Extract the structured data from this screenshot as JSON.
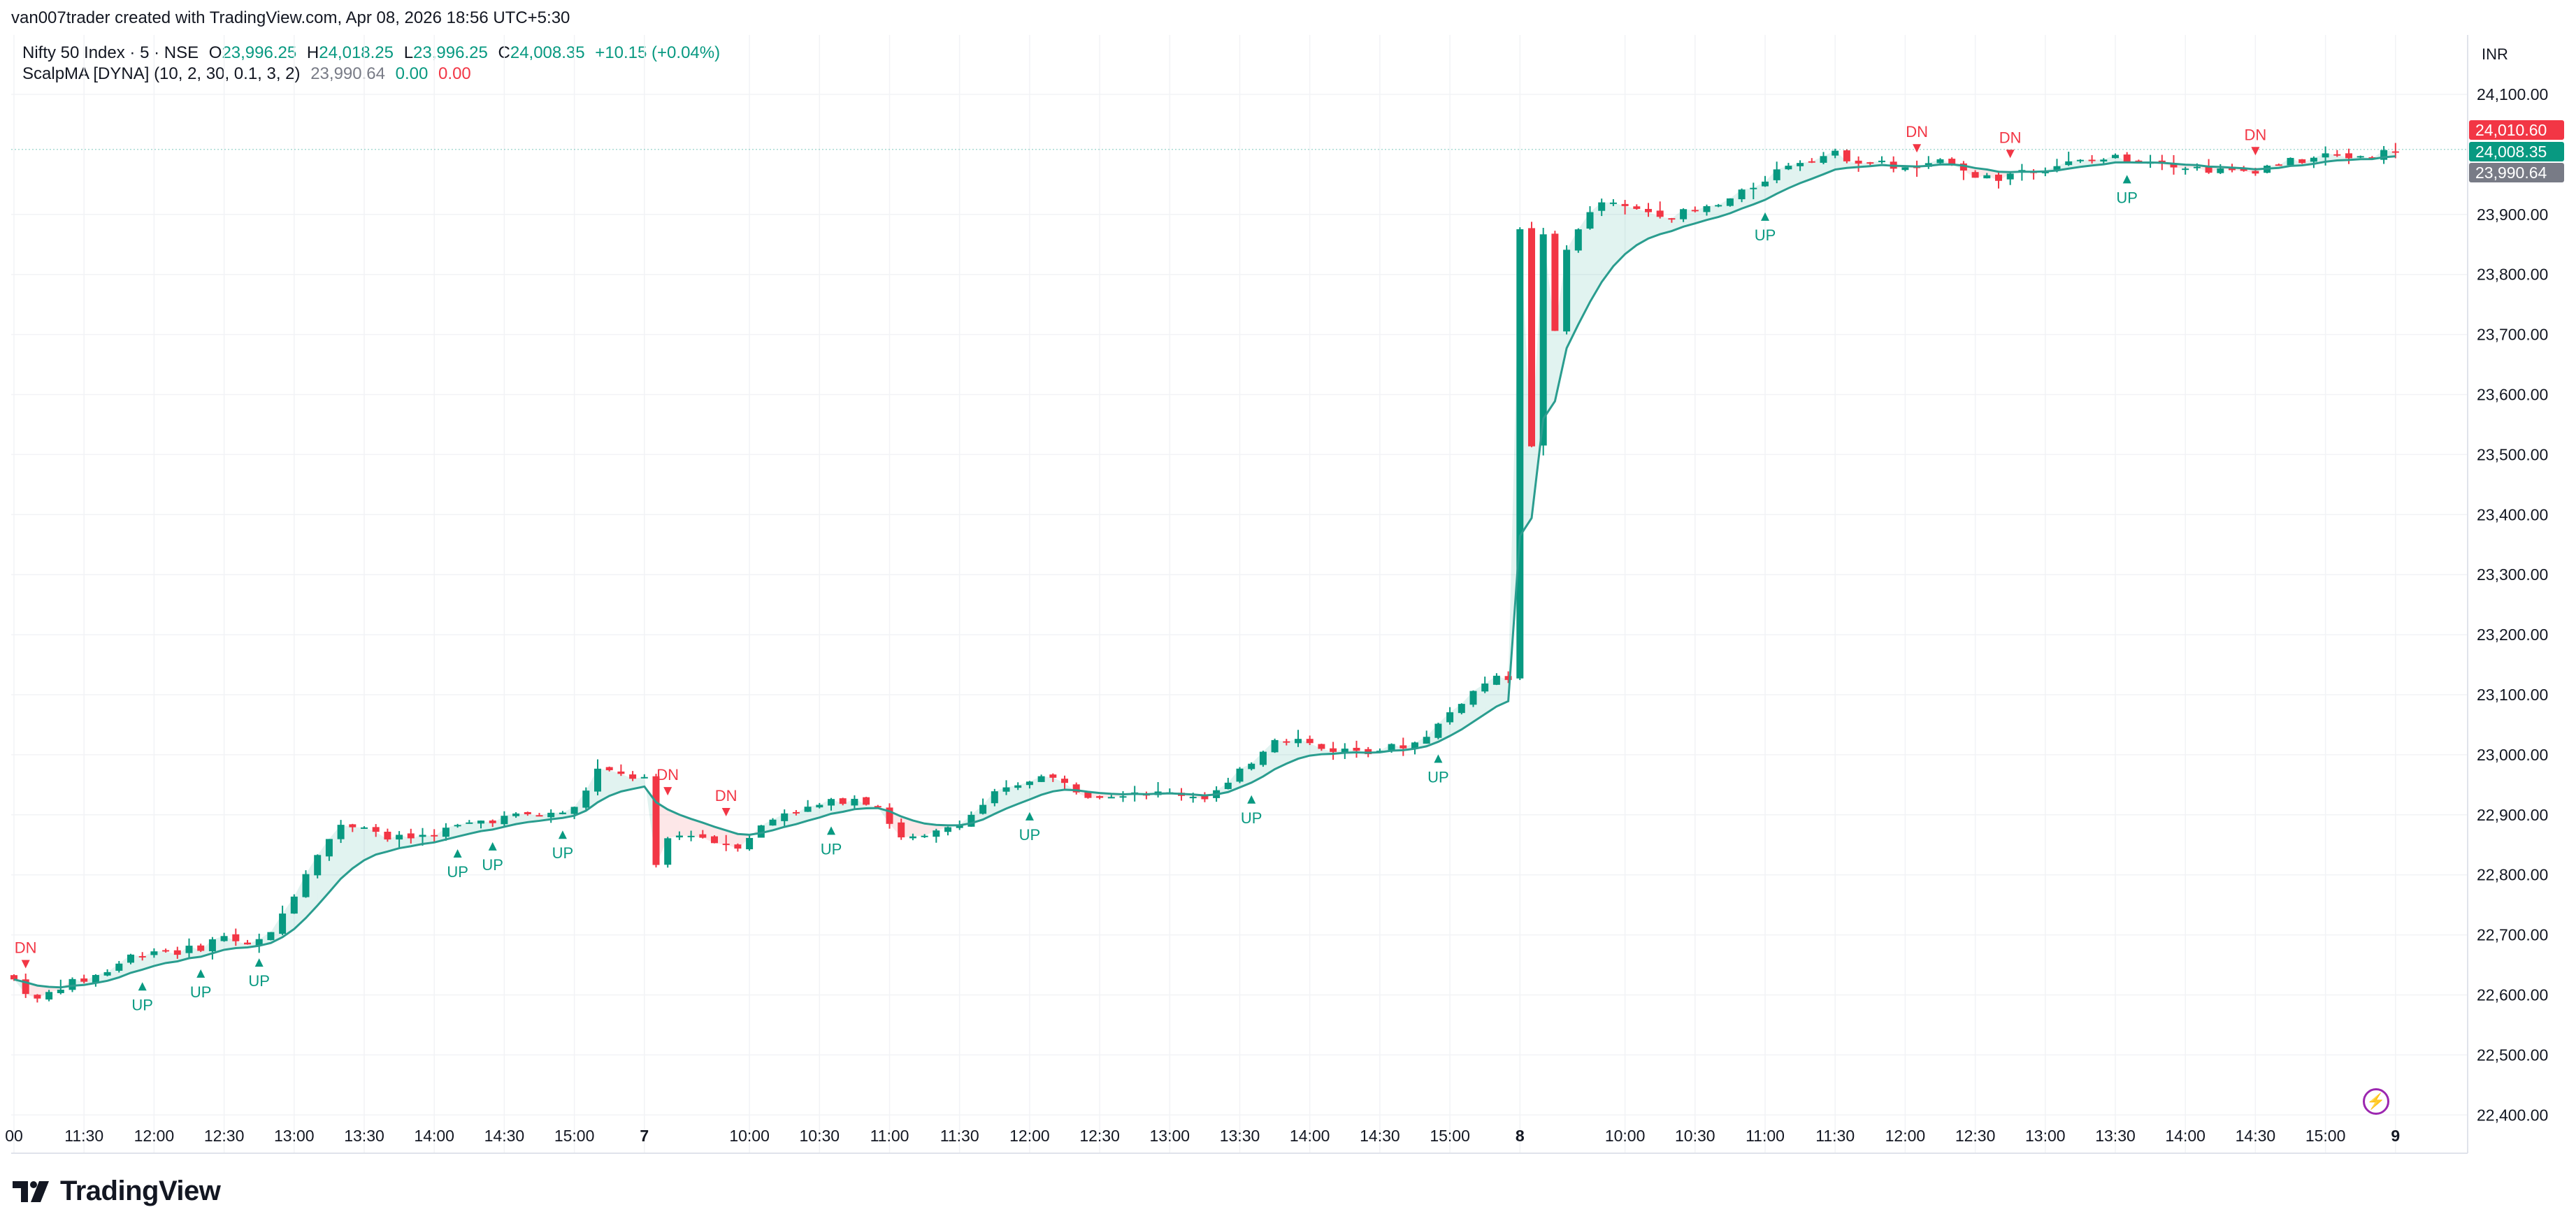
{
  "attribution": "van007trader created with TradingView.com, Apr 08, 2026 18:56 UTC+5:30",
  "header": {
    "symbol": "Nifty 50 Index · 5 · NSE",
    "o_label": "O",
    "o_value": "23,996.25",
    "h_label": "H",
    "h_value": "24,018.25",
    "l_label": "L",
    "l_value": "23,996.25",
    "c_label": "C",
    "c_value": "24,008.35",
    "change": "+10.15 (+0.04%)"
  },
  "indicator": {
    "name": "ScalpMA [DYNA] (10, 2, 30, 0.1, 3, 2)",
    "value": "23,990.64",
    "v2": "0.00",
    "v3": "0.00"
  },
  "currency": "INR",
  "branding": "TradingView",
  "colors": {
    "up": "#089981",
    "down": "#f23645",
    "ma": "#2a9d8f",
    "grid": "#f0f3fa",
    "text": "#131722"
  },
  "chart_data": {
    "type": "candlestick",
    "ylim": [
      22375,
      24130
    ],
    "y_ticks": [
      "24,100.00",
      "23,900.00",
      "23,800.00",
      "23,700.00",
      "23,600.00",
      "23,500.00",
      "23,400.00",
      "23,300.00",
      "23,200.00",
      "23,100.00",
      "23,000.00",
      "22,900.00",
      "22,800.00",
      "22,700.00",
      "22,600.00",
      "22,500.00",
      "22,400.00"
    ],
    "y_tick_values": [
      24100,
      23900,
      23800,
      23700,
      23600,
      23500,
      23400,
      23300,
      23200,
      23100,
      23000,
      22900,
      22800,
      22700,
      22600,
      22500,
      22400
    ],
    "x_ticks": [
      {
        "label": "00",
        "bar": 0
      },
      {
        "label": "11:30",
        "bar": 6
      },
      {
        "label": "12:00",
        "bar": 12
      },
      {
        "label": "12:30",
        "bar": 18
      },
      {
        "label": "13:00",
        "bar": 24
      },
      {
        "label": "13:30",
        "bar": 30
      },
      {
        "label": "14:00",
        "bar": 36
      },
      {
        "label": "14:30",
        "bar": 42
      },
      {
        "label": "15:00",
        "bar": 48
      },
      {
        "label": "7",
        "bar": 54,
        "bold": true
      },
      {
        "label": "10:00",
        "bar": 63
      },
      {
        "label": "10:30",
        "bar": 69
      },
      {
        "label": "11:00",
        "bar": 75
      },
      {
        "label": "11:30",
        "bar": 81
      },
      {
        "label": "12:00",
        "bar": 87
      },
      {
        "label": "12:30",
        "bar": 93
      },
      {
        "label": "13:00",
        "bar": 99
      },
      {
        "label": "13:30",
        "bar": 105
      },
      {
        "label": "14:00",
        "bar": 111
      },
      {
        "label": "14:30",
        "bar": 117
      },
      {
        "label": "15:00",
        "bar": 123
      },
      {
        "label": "8",
        "bar": 129,
        "bold": true
      },
      {
        "label": "10:00",
        "bar": 138
      },
      {
        "label": "10:30",
        "bar": 144
      },
      {
        "label": "11:00",
        "bar": 150
      },
      {
        "label": "11:30",
        "bar": 156
      },
      {
        "label": "12:00",
        "bar": 162
      },
      {
        "label": "12:30",
        "bar": 168
      },
      {
        "label": "13:00",
        "bar": 174
      },
      {
        "label": "13:30",
        "bar": 180
      },
      {
        "label": "14:00",
        "bar": 186
      },
      {
        "label": "14:30",
        "bar": 192
      },
      {
        "label": "15:00",
        "bar": 198
      },
      {
        "label": "9",
        "bar": 204,
        "bold": true
      }
    ],
    "price_labels": [
      {
        "text": "24,010.60",
        "value": 24010.6,
        "color": "#f23645"
      },
      {
        "text": "24,008.35",
        "value": 24008.35,
        "color": "#089981"
      },
      {
        "text": "23,990.64",
        "value": 23990.64,
        "color": "#787b86"
      }
    ],
    "last_price": 24008.35,
    "close_anchors": [
      [
        0,
        22625
      ],
      [
        2,
        22590
      ],
      [
        4,
        22615
      ],
      [
        6,
        22625
      ],
      [
        8,
        22640
      ],
      [
        10,
        22665
      ],
      [
        12,
        22675
      ],
      [
        14,
        22672
      ],
      [
        16,
        22680
      ],
      [
        18,
        22700
      ],
      [
        20,
        22680
      ],
      [
        22,
        22700
      ],
      [
        24,
        22770
      ],
      [
        26,
        22840
      ],
      [
        28,
        22880
      ],
      [
        30,
        22885
      ],
      [
        32,
        22860
      ],
      [
        34,
        22862
      ],
      [
        36,
        22870
      ],
      [
        38,
        22880
      ],
      [
        40,
        22890
      ],
      [
        42,
        22895
      ],
      [
        44,
        22900
      ],
      [
        46,
        22900
      ],
      [
        48,
        22910
      ],
      [
        50,
        22975
      ],
      [
        52,
        22965
      ],
      [
        54,
        22960
      ],
      [
        55,
        22810
      ],
      [
        56,
        22860
      ],
      [
        58,
        22870
      ],
      [
        60,
        22855
      ],
      [
        62,
        22850
      ],
      [
        64,
        22880
      ],
      [
        66,
        22905
      ],
      [
        68,
        22910
      ],
      [
        70,
        22920
      ],
      [
        72,
        22930
      ],
      [
        74,
        22915
      ],
      [
        76,
        22860
      ],
      [
        78,
        22860
      ],
      [
        80,
        22880
      ],
      [
        82,
        22900
      ],
      [
        84,
        22935
      ],
      [
        86,
        22945
      ],
      [
        88,
        22970
      ],
      [
        90,
        22950
      ],
      [
        92,
        22935
      ],
      [
        94,
        22935
      ],
      [
        96,
        22940
      ],
      [
        98,
        22935
      ],
      [
        100,
        22935
      ],
      [
        102,
        22930
      ],
      [
        104,
        22950
      ],
      [
        106,
        22990
      ],
      [
        108,
        23030
      ],
      [
        110,
        23025
      ],
      [
        112,
        23010
      ],
      [
        114,
        23008
      ],
      [
        116,
        23008
      ],
      [
        118,
        23012
      ],
      [
        120,
        23020
      ],
      [
        122,
        23050
      ],
      [
        124,
        23090
      ],
      [
        126,
        23120
      ],
      [
        128,
        23130
      ],
      [
        129,
        23880
      ],
      [
        130,
        23510
      ],
      [
        131,
        23870
      ],
      [
        132,
        23700
      ],
      [
        133,
        23840
      ],
      [
        134,
        23880
      ],
      [
        136,
        23920
      ],
      [
        138,
        23910
      ],
      [
        140,
        23905
      ],
      [
        142,
        23900
      ],
      [
        144,
        23905
      ],
      [
        146,
        23915
      ],
      [
        148,
        23935
      ],
      [
        150,
        23960
      ],
      [
        152,
        23985
      ],
      [
        154,
        23995
      ],
      [
        156,
        24000
      ],
      [
        158,
        23990
      ],
      [
        160,
        23985
      ],
      [
        162,
        23975
      ],
      [
        164,
        23980
      ],
      [
        166,
        23990
      ],
      [
        168,
        23965
      ],
      [
        170,
        23960
      ],
      [
        172,
        23975
      ],
      [
        174,
        23980
      ],
      [
        176,
        23985
      ],
      [
        178,
        23990
      ],
      [
        180,
        23995
      ],
      [
        182,
        23990
      ],
      [
        184,
        23990
      ],
      [
        186,
        23980
      ],
      [
        188,
        23975
      ],
      [
        190,
        23970
      ],
      [
        192,
        23975
      ],
      [
        194,
        23985
      ],
      [
        196,
        23990
      ],
      [
        198,
        23998
      ],
      [
        200,
        23996
      ],
      [
        202,
        23999
      ],
      [
        204,
        24008
      ]
    ],
    "signals": [
      {
        "type": "DN",
        "bar": 1
      },
      {
        "type": "UP",
        "bar": 11
      },
      {
        "type": "UP",
        "bar": 16
      },
      {
        "type": "UP",
        "bar": 21
      },
      {
        "type": "UP",
        "bar": 38
      },
      {
        "type": "UP",
        "bar": 41
      },
      {
        "type": "UP",
        "bar": 47
      },
      {
        "type": "DN",
        "bar": 56
      },
      {
        "type": "DN",
        "bar": 61
      },
      {
        "type": "UP",
        "bar": 70
      },
      {
        "type": "UP",
        "bar": 87
      },
      {
        "type": "UP",
        "bar": 106
      },
      {
        "type": "UP",
        "bar": 122
      },
      {
        "type": "UP",
        "bar": 150
      },
      {
        "type": "DN",
        "bar": 163
      },
      {
        "type": "DN",
        "bar": 171
      },
      {
        "type": "UP",
        "bar": 181
      },
      {
        "type": "DN",
        "bar": 192
      }
    ]
  }
}
